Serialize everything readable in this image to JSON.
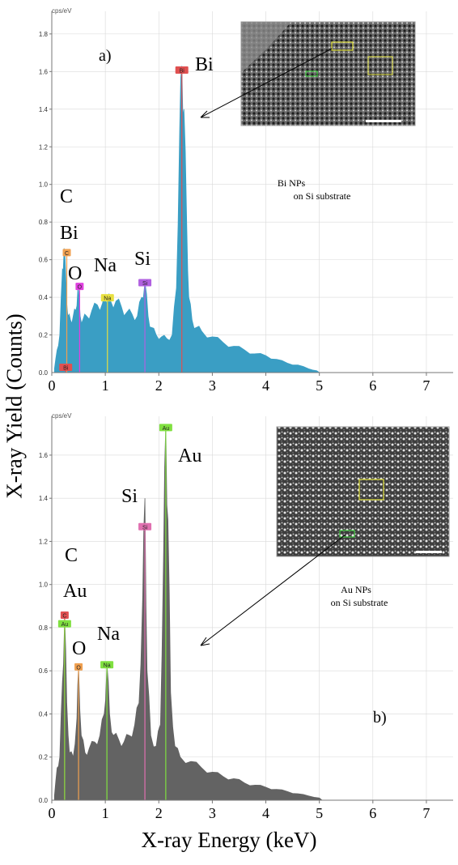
{
  "figure": {
    "y_axis_label": "X-ray Yield (Counts)",
    "x_axis_label": "X-ray Energy (keV)"
  },
  "chart_data": [
    {
      "type": "area",
      "panel_label": "a)",
      "unit_label": "cps/eV",
      "color": "#3a9ec4",
      "inset_caption": [
        "Bi NPs",
        "on Si substrate"
      ],
      "xlim": [
        0,
        7.5
      ],
      "ylim": [
        0,
        1.92
      ],
      "x_ticks": [
        0,
        1,
        2,
        3,
        4,
        5,
        6,
        7
      ],
      "y_ticks": [
        0.2,
        0.4,
        0.6,
        0.8,
        1.0,
        1.2,
        1.4,
        1.6,
        1.8
      ],
      "x_tick_labels": [
        "0",
        "1",
        "2",
        "3",
        "4",
        "5",
        "6",
        "7"
      ],
      "y_tick_labels": [
        "0.2",
        "0.4",
        "0.6",
        "0.8",
        "1.0",
        "1.2",
        "1.4",
        "1.6",
        "1.8"
      ],
      "spectrum": {
        "x": [
          0.05,
          0.1,
          0.15,
          0.2,
          0.23,
          0.26,
          0.3,
          0.35,
          0.4,
          0.45,
          0.49,
          0.53,
          0.58,
          0.65,
          0.75,
          0.85,
          0.95,
          1.0,
          1.04,
          1.1,
          1.2,
          1.3,
          1.4,
          1.5,
          1.6,
          1.68,
          1.74,
          1.8,
          1.86,
          1.95,
          2.05,
          2.15,
          2.25,
          2.33,
          2.39,
          2.43,
          2.47,
          2.52,
          2.56,
          2.62,
          2.7,
          2.8,
          3.0,
          3.2,
          3.4,
          3.6,
          3.8,
          4.0,
          4.2,
          4.4,
          4.6,
          4.8,
          4.95,
          5.0
        ],
        "y": [
          0.02,
          0.12,
          0.2,
          0.55,
          0.66,
          0.52,
          0.3,
          0.28,
          0.3,
          0.33,
          0.46,
          0.3,
          0.28,
          0.3,
          0.33,
          0.36,
          0.37,
          0.4,
          0.4,
          0.38,
          0.38,
          0.35,
          0.32,
          0.31,
          0.3,
          0.4,
          0.48,
          0.3,
          0.24,
          0.2,
          0.19,
          0.18,
          0.2,
          0.45,
          1.3,
          1.63,
          1.4,
          0.8,
          0.4,
          0.28,
          0.24,
          0.22,
          0.19,
          0.16,
          0.14,
          0.12,
          0.1,
          0.09,
          0.07,
          0.05,
          0.04,
          0.02,
          0.01,
          0
        ]
      },
      "peaks": [
        {
          "element": "C",
          "x": 0.28,
          "y": 0.64,
          "color": "#f0a050"
        },
        {
          "element": "O",
          "x": 0.52,
          "y": 0.46,
          "color": "#e040e0"
        },
        {
          "element": "Na",
          "x": 1.04,
          "y": 0.4,
          "color": "#e8e040"
        },
        {
          "element": "Si",
          "x": 1.74,
          "y": 0.48,
          "color": "#b060e0"
        },
        {
          "element": "Bi",
          "x": 2.43,
          "y": 1.61,
          "color": "#e05050"
        },
        {
          "element": "Bi",
          "x": 0.26,
          "y": 0.03,
          "color": "#e05050"
        }
      ],
      "annotations": [
        "C",
        "Bi",
        "O",
        "Na",
        "Si",
        "Bi"
      ]
    },
    {
      "type": "area",
      "panel_label": "b)",
      "unit_label": "cps/eV",
      "color": "#636363",
      "inset_caption": [
        "Au NPs",
        "on Si substrate"
      ],
      "xlim": [
        0,
        7.5
      ],
      "ylim": [
        0,
        1.78
      ],
      "x_ticks": [
        0,
        1,
        2,
        3,
        4,
        5,
        6,
        7
      ],
      "y_ticks": [
        0.2,
        0.4,
        0.6,
        0.8,
        1.0,
        1.2,
        1.4,
        1.6
      ],
      "x_tick_labels": [
        "0",
        "1",
        "2",
        "3",
        "4",
        "5",
        "6",
        "7"
      ],
      "y_tick_labels": [
        "0.2",
        "0.4",
        "0.6",
        "0.8",
        "1.0",
        "1.2",
        "1.4",
        "1.6"
      ],
      "spectrum": {
        "x": [
          0.05,
          0.1,
          0.15,
          0.2,
          0.24,
          0.28,
          0.33,
          0.4,
          0.47,
          0.5,
          0.55,
          0.62,
          0.7,
          0.8,
          0.9,
          0.98,
          1.03,
          1.08,
          1.15,
          1.25,
          1.35,
          1.45,
          1.55,
          1.63,
          1.7,
          1.74,
          1.78,
          1.85,
          1.95,
          2.03,
          2.09,
          2.13,
          2.17,
          2.22,
          2.3,
          2.4,
          2.6,
          2.8,
          3.0,
          3.2,
          3.4,
          3.6,
          3.8,
          4.0,
          4.2,
          4.4,
          4.6,
          4.8,
          5.0,
          5.05
        ],
        "y": [
          0.02,
          0.15,
          0.2,
          0.55,
          0.85,
          0.45,
          0.22,
          0.2,
          0.38,
          0.62,
          0.3,
          0.22,
          0.24,
          0.27,
          0.3,
          0.4,
          0.63,
          0.4,
          0.3,
          0.28,
          0.27,
          0.3,
          0.35,
          0.45,
          0.95,
          1.4,
          0.6,
          0.3,
          0.25,
          0.35,
          1.15,
          1.74,
          1.3,
          0.5,
          0.25,
          0.2,
          0.18,
          0.15,
          0.13,
          0.11,
          0.1,
          0.08,
          0.07,
          0.06,
          0.05,
          0.04,
          0.03,
          0.02,
          0.01,
          0
        ]
      },
      "peaks": [
        {
          "element": "C",
          "x": 0.24,
          "y": 0.86,
          "color": "#e05050"
        },
        {
          "element": "Au",
          "x": 0.24,
          "y": 0.82,
          "color": "#80e040"
        },
        {
          "element": "O",
          "x": 0.5,
          "y": 0.62,
          "color": "#f0a050"
        },
        {
          "element": "Na",
          "x": 1.03,
          "y": 0.63,
          "color": "#80e040"
        },
        {
          "element": "Si",
          "x": 1.74,
          "y": 1.27,
          "color": "#e070b0"
        },
        {
          "element": "Au",
          "x": 2.13,
          "y": 1.73,
          "color": "#80e040"
        }
      ],
      "annotations": [
        "C",
        "Au",
        "O",
        "Na",
        "Si",
        "Au"
      ]
    }
  ]
}
